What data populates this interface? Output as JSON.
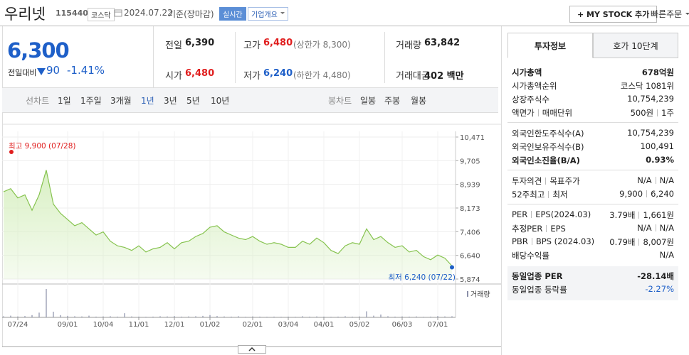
{
  "header": {
    "name": "우리넷",
    "code": "115440",
    "market": "코스닥",
    "date": "2024.07.22",
    "basis": "기준(장마감)",
    "realtime": "실시간",
    "overview": "기업개요",
    "mystock": "+ MY STOCK 추가",
    "quick_order": "빠른주문"
  },
  "price": {
    "current": "6,300",
    "change_label": "전일대비",
    "change": "90",
    "change_rate": "-1.41%"
  },
  "stats": [
    {
      "label": "전일",
      "value": "6,390",
      "color": "#222222"
    },
    {
      "label": "고가",
      "value": "6,480",
      "note": "(상한가 8,300)",
      "color": "#e01e1e"
    },
    {
      "label": "거래량",
      "value": "63,842",
      "color": "#222222"
    },
    {
      "label": "시가",
      "value": "6,480",
      "color": "#e01e1e"
    },
    {
      "label": "저가",
      "value": "6,240",
      "note": "(하한가 4,480)",
      "color": "#1e5fc8"
    },
    {
      "label": "거래대금",
      "value": "402 백만",
      "color": "#222222"
    }
  ],
  "tabs": {
    "line_label": "선차트",
    "line": [
      "1일",
      "1주일",
      "3개월",
      "1년",
      "3년",
      "5년",
      "10년"
    ],
    "line_active": 3,
    "candle_label": "봉차트",
    "candle": [
      "일봉",
      "주봉",
      "월봉"
    ]
  },
  "chart_data": {
    "type": "line",
    "categories": [
      null,
      null,
      "07/24",
      null,
      null,
      null,
      null,
      null,
      null,
      "09/01",
      null,
      null,
      null,
      null,
      "10/04",
      null,
      null,
      null,
      null,
      "11/01",
      null,
      null,
      null,
      null,
      "12/01",
      null,
      null,
      null,
      null,
      "01/02",
      null,
      null,
      null,
      null,
      null,
      "02/01",
      null,
      null,
      null,
      null,
      "03/04",
      null,
      null,
      null,
      null,
      "04/01",
      null,
      null,
      null,
      null,
      "05/02",
      null,
      null,
      null,
      null,
      null,
      "06/03",
      null,
      null,
      null,
      null,
      "07/01",
      null,
      null
    ],
    "values": [
      8700,
      8800,
      8500,
      8600,
      8100,
      8600,
      9400,
      8300,
      8000,
      7800,
      7600,
      7700,
      7500,
      7300,
      7400,
      7100,
      6950,
      6900,
      6800,
      6950,
      6750,
      6850,
      6900,
      7050,
      6850,
      7050,
      7100,
      7250,
      7350,
      7550,
      7600,
      7400,
      7300,
      7200,
      7150,
      7250,
      7100,
      7000,
      7050,
      7000,
      6900,
      6900,
      7100,
      7000,
      7200,
      7050,
      6800,
      6700,
      6950,
      7050,
      7000,
      7500,
      7150,
      7250,
      7050,
      6900,
      6950,
      6750,
      6800,
      6600,
      6500,
      6650,
      6550,
      6300
    ],
    "color": "#86c34f",
    "fill_color": "#d9f0c4",
    "ylim": [
      5874,
      10471
    ],
    "yticks": [
      {
        "value": 10471,
        "label": "10,471"
      },
      {
        "value": 9705,
        "label": "9,705"
      },
      {
        "value": 8939,
        "label": "8,939"
      },
      {
        "value": 8173,
        "label": "8,173"
      },
      {
        "value": 7406,
        "label": "7,406"
      },
      {
        "value": 6640,
        "label": "6,640"
      },
      {
        "value": 5874,
        "label": "5,874"
      }
    ],
    "grid": true,
    "annotations": [
      {
        "text": "최고 9,900 (07/28)",
        "color": "#e01e1e"
      },
      {
        "text": "최저 6,240 (07/22)",
        "color": "#1e5fc8"
      }
    ],
    "volume_label": "거래량",
    "volume_color": "#8a8fa8",
    "volume": [
      60000,
      90000,
      50000,
      70000,
      120000,
      250000,
      1500000,
      300000,
      120000,
      80000,
      60000,
      50000,
      90000,
      40000,
      50000,
      60000,
      40000,
      220000,
      50000,
      40000,
      30000,
      40000,
      60000,
      50000,
      70000,
      40000,
      50000,
      60000,
      80000,
      120000,
      70000,
      50000,
      40000,
      60000,
      30000,
      50000,
      40000,
      30000,
      40000,
      30000,
      40000,
      30000,
      60000,
      40000,
      50000,
      40000,
      30000,
      40000,
      60000,
      40000,
      50000,
      320000,
      90000,
      150000,
      60000,
      40000,
      50000,
      40000,
      50000,
      30000,
      40000,
      70000,
      50000,
      60000
    ]
  },
  "info": {
    "tabs": [
      "투자정보",
      "호가 10단계"
    ],
    "groups": [
      [
        {
          "labels": [
            "시가총액"
          ],
          "values": [
            "678억원"
          ],
          "bold": true
        },
        {
          "labels": [
            "시가총액순위"
          ],
          "values": [
            "코스닥 1081위"
          ]
        },
        {
          "labels": [
            "상장주식수"
          ],
          "values": [
            "10,754,239"
          ]
        },
        {
          "labels": [
            "액면가",
            "매매단위"
          ],
          "values": [
            "500원",
            "1주"
          ]
        }
      ],
      [
        {
          "labels": [
            "외국인한도주식수(A)"
          ],
          "values": [
            "10,754,239"
          ]
        },
        {
          "labels": [
            "외국인보유주식수(B)"
          ],
          "values": [
            "100,491"
          ]
        },
        {
          "labels": [
            "외국인소진율(B/A)"
          ],
          "values": [
            "0.93%"
          ],
          "bold": true
        }
      ],
      [
        {
          "labels": [
            "투자의견",
            "목표주가"
          ],
          "values": [
            "N/A",
            "N/A"
          ]
        },
        {
          "labels": [
            "52주최고",
            "최저"
          ],
          "values": [
            "9,900",
            "6,240"
          ]
        }
      ],
      [
        {
          "labels": [
            "PER",
            "EPS(2024.03)"
          ],
          "values": [
            "3.79배",
            "1,661원"
          ]
        },
        {
          "labels": [
            "추정PER",
            "EPS"
          ],
          "values": [
            "N/A",
            "N/A"
          ]
        },
        {
          "labels": [
            "PBR",
            "BPS (2024.03)"
          ],
          "values": [
            "0.79배",
            "8,007원"
          ]
        },
        {
          "labels": [
            "배당수익률"
          ],
          "values": [
            "N/A"
          ]
        }
      ],
      [
        {
          "labels": [
            "동일업종 PER"
          ],
          "values": [
            "-28.14배"
          ],
          "bold": true
        },
        {
          "labels": [
            "동일업종 등락률"
          ],
          "values": [
            "-2.27%"
          ],
          "color": "#1e5fc8"
        }
      ]
    ]
  }
}
